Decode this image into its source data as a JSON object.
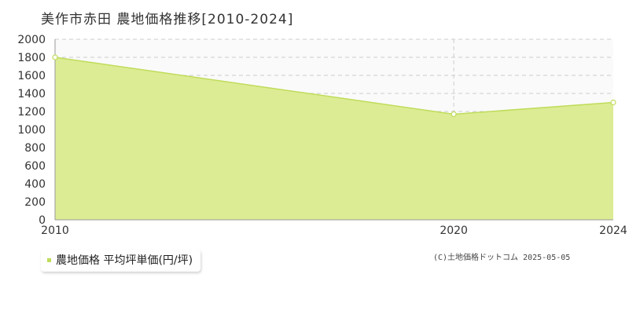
{
  "title": "美作市赤田  農地価格推移[2010-2024]",
  "legend": {
    "label": "農地価格 平均坪単価(円/坪)"
  },
  "credit": "(C)土地価格ドットコム 2025-05-05",
  "colors": {
    "fill": "#dcec94",
    "line": "#bfdc5a",
    "grid": "#cccccc",
    "axis": "#999999",
    "marker_fill": "#ffffff",
    "marker_stroke": "#bfdc5a",
    "legend_swatch": "#bfdc5a"
  },
  "chart_data": {
    "type": "area",
    "x": [
      2010,
      2020,
      2024
    ],
    "series": [
      {
        "name": "農地価格 平均坪単価(円/坪)",
        "values": [
          1800,
          1170,
          1300
        ]
      }
    ],
    "xticks": [
      "2010",
      "2020",
      "2024"
    ],
    "yticks": [
      "0",
      "200",
      "400",
      "600",
      "800",
      "1000",
      "1200",
      "1400",
      "1600",
      "1800",
      "2000"
    ],
    "xlim": [
      2010,
      2024
    ],
    "ylim": [
      0,
      2000
    ],
    "grid": true
  }
}
